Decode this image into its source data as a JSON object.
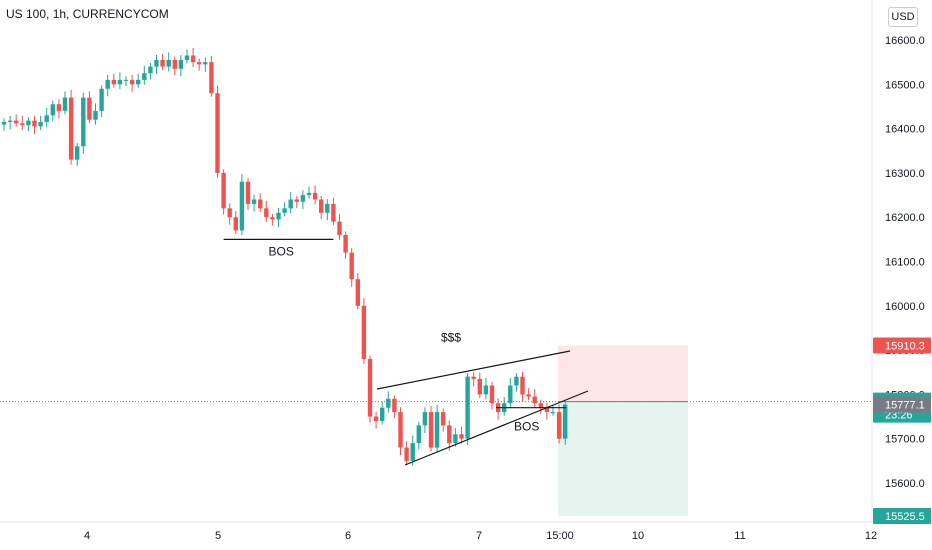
{
  "header": {
    "title": "US 100, 1h, CURRENCYCOM",
    "currency": "USD"
  },
  "colors": {
    "up": "#26a69a",
    "down": "#ef5350",
    "stop_zone": "#fde6e5",
    "target_zone": "#e6f4f0",
    "label_gray": "#787b86",
    "price_line": "#26a69a"
  },
  "chart_data": {
    "type": "candlestick",
    "title": "US 100, 1h, CURRENCYCOM",
    "ylim": [
      15510,
      16660
    ],
    "y_ticks": [
      15600,
      15700,
      15800,
      15900,
      16000,
      16100,
      16200,
      16300,
      16400,
      16500,
      16600
    ],
    "y_tick_labels": [
      "15600.0",
      "15700.0",
      "15800.0",
      "15900.0",
      "16000.0",
      "16100.0",
      "16200.0",
      "16300.0",
      "16400.0",
      "16500.0",
      "16600.0"
    ],
    "x_ticks": [
      {
        "label": "4",
        "index": 14
      },
      {
        "label": "5",
        "index": 35
      },
      {
        "label": "6",
        "index": 56
      },
      {
        "label": "7",
        "index": 77
      },
      {
        "label": "15:00",
        "index": 89
      },
      {
        "label": "10",
        "index": 102
      },
      {
        "label": "11",
        "index": 118
      },
      {
        "label": "12",
        "index": 140
      }
    ],
    "closes": [
      16415,
      16418,
      16412,
      16408,
      16418,
      16405,
      16415,
      16430,
      16455,
      16440,
      16470,
      16330,
      16360,
      16470,
      16420,
      16440,
      16490,
      16510,
      16500,
      16510,
      16510,
      16500,
      16510,
      16525,
      16540,
      16555,
      16540,
      16555,
      16535,
      16555,
      16565,
      16550,
      16545,
      16550,
      16480,
      16300,
      16220,
      16200,
      16170,
      16280,
      16230,
      16240,
      16220,
      16200,
      16195,
      16210,
      16220,
      16240,
      16235,
      16250,
      16255,
      16240,
      16210,
      16230,
      16190,
      16160,
      16120,
      16060,
      16000,
      15880,
      15750,
      15740,
      15770,
      15790,
      15760,
      15680,
      15650,
      15690,
      15730,
      15760,
      15680,
      15760,
      15730,
      15690,
      15710,
      15700,
      15840,
      15835,
      15800,
      15820,
      15780,
      15760,
      15780,
      15820,
      15840,
      15800,
      15795,
      15780,
      15770,
      15760,
      15760,
      15700,
      15777
    ],
    "current_price": 15783.6,
    "countdown": "23:26",
    "open_price": 15777.1,
    "stop_level": 15910.3,
    "target_level": 15525.5,
    "annotations": [
      {
        "text": "BOS",
        "level": 16150
      },
      {
        "text": "$$$",
        "level": 15910
      },
      {
        "text": "BOS",
        "level": 15770
      }
    ]
  }
}
